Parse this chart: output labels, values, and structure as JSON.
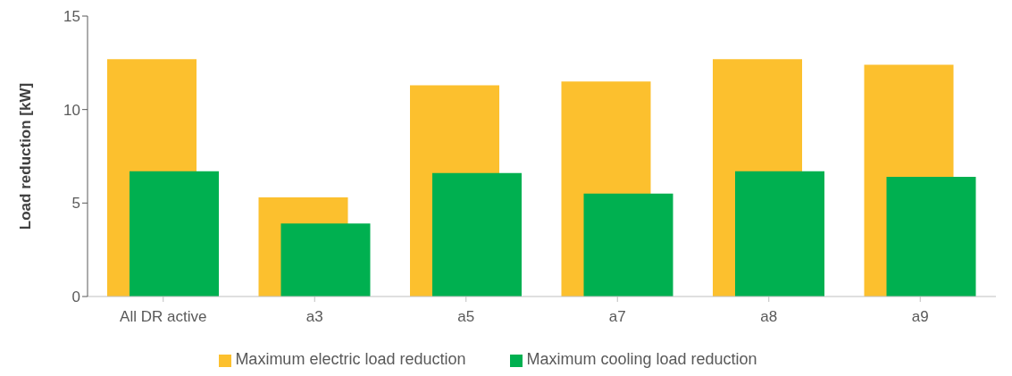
{
  "chart_data": {
    "type": "bar",
    "ylabel": "Load reduction [kW]",
    "categories": [
      "All DR active",
      "a3",
      "a5",
      "a7",
      "a8",
      "a9"
    ],
    "series": [
      {
        "name": "Maximum electric load reduction",
        "color": "#fcc02e",
        "values": [
          12.7,
          5.3,
          11.3,
          11.5,
          12.7,
          12.4
        ]
      },
      {
        "name": "Maximum cooling load reduction",
        "color": "#00b050",
        "values": [
          6.7,
          3.9,
          6.6,
          5.5,
          6.7,
          6.4
        ]
      }
    ],
    "ylim": [
      0,
      15
    ],
    "yticks": [
      0,
      5,
      10,
      15
    ],
    "grid": false,
    "legend": "bottom"
  }
}
